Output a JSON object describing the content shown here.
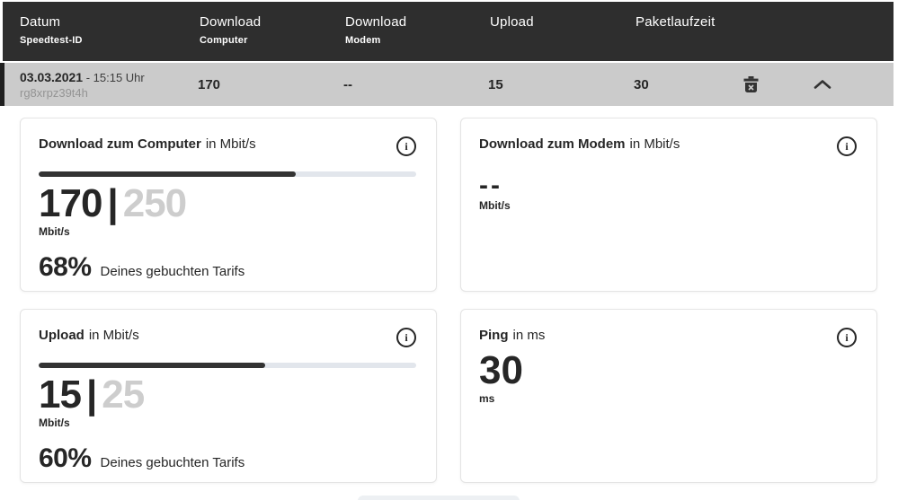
{
  "colors": {
    "header_bg": "#2e2e2e",
    "row_bg": "#cbcbcb",
    "row_accent": "#1f1f1f",
    "text_dark": "#262626",
    "text_muted": "#cdcdcd",
    "bar_fill": "#333333",
    "bar_track": "#e2e6ec"
  },
  "header": {
    "columns": [
      {
        "label": "Datum",
        "sublabel": "Speedtest-ID"
      },
      {
        "label": "Download",
        "sublabel": "Computer"
      },
      {
        "label": "Download",
        "sublabel": "Modem"
      },
      {
        "label": "Upload",
        "sublabel": ""
      },
      {
        "label": "Paketlaufzeit",
        "sublabel": ""
      }
    ]
  },
  "row": {
    "date": "03.03.2021",
    "time": "- 15:15 Uhr",
    "id": "rg8xrpz39t4h",
    "download_computer": "170",
    "download_modem": "--",
    "upload": "15",
    "paketlaufzeit": "30",
    "delete_icon": "trash-icon",
    "collapse_icon": "chevron-up-icon"
  },
  "icons": {
    "info": "i"
  },
  "cards": [
    {
      "title": "Download zum Computer",
      "title_suffix": "in Mbit/s",
      "value": "170",
      "separator": "|",
      "max": "250",
      "unit": "Mbit/s",
      "bar_percent": 68,
      "percent": "68%",
      "percent_text": "Deines gebuchten Tarifs"
    },
    {
      "title": "Download zum Modem",
      "title_suffix": "in Mbit/s",
      "value": "--",
      "unit": "Mbit/s"
    },
    {
      "title": "Upload",
      "title_suffix": "in Mbit/s",
      "value": "15",
      "separator": "|",
      "max": "25",
      "unit": "Mbit/s",
      "bar_percent": 60,
      "percent": "60%",
      "percent_text": "Deines gebuchten Tarifs"
    },
    {
      "title": "Ping",
      "title_suffix": "in ms",
      "value": "30",
      "unit": "ms"
    }
  ]
}
